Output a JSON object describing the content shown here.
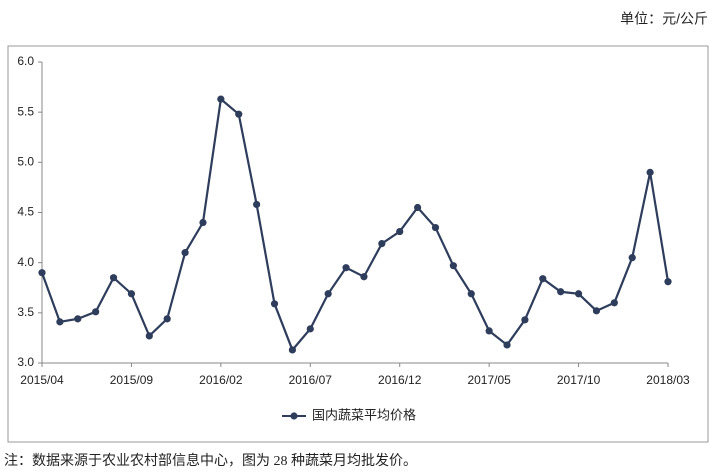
{
  "chart_data": {
    "type": "line",
    "unit_note": "单位：元/公斤",
    "footnote": "注：数据来源于农业农村部信息中心，图为 28 种蔬菜月均批发价。",
    "categories": [
      "2015/04",
      null,
      null,
      null,
      null,
      "2015/09",
      null,
      null,
      null,
      null,
      "2016/02",
      null,
      null,
      null,
      null,
      "2016/07",
      null,
      null,
      null,
      null,
      "2016/12",
      null,
      null,
      null,
      null,
      "2017/05",
      null,
      null,
      null,
      null,
      "2017/10",
      null,
      null,
      null,
      null,
      "2018/03"
    ],
    "series": [
      {
        "name": "国内蔬菜平均价格",
        "color": "#2e3d5c",
        "values": [
          3.9,
          3.41,
          3.44,
          3.51,
          3.85,
          3.69,
          3.27,
          3.44,
          4.1,
          4.4,
          5.63,
          5.48,
          4.58,
          3.59,
          3.13,
          3.34,
          3.69,
          3.95,
          3.86,
          4.19,
          4.31,
          4.55,
          4.35,
          3.97,
          3.69,
          3.32,
          3.18,
          3.43,
          3.84,
          3.71,
          3.69,
          3.52,
          3.6,
          4.05,
          4.9,
          3.81
        ]
      }
    ],
    "ylim": [
      3,
      6
    ],
    "yticks": [
      {
        "value": 3,
        "label": "3.0"
      },
      {
        "value": 3.5,
        "label": "3.5"
      },
      {
        "value": 4,
        "label": "4.0"
      },
      {
        "value": 4.5,
        "label": "4.5"
      },
      {
        "value": 5,
        "label": "5.0"
      },
      {
        "value": 5.5,
        "label": "5.5"
      },
      {
        "value": 6,
        "label": "6.0"
      }
    ],
    "grid": false,
    "legend": "bottom"
  }
}
